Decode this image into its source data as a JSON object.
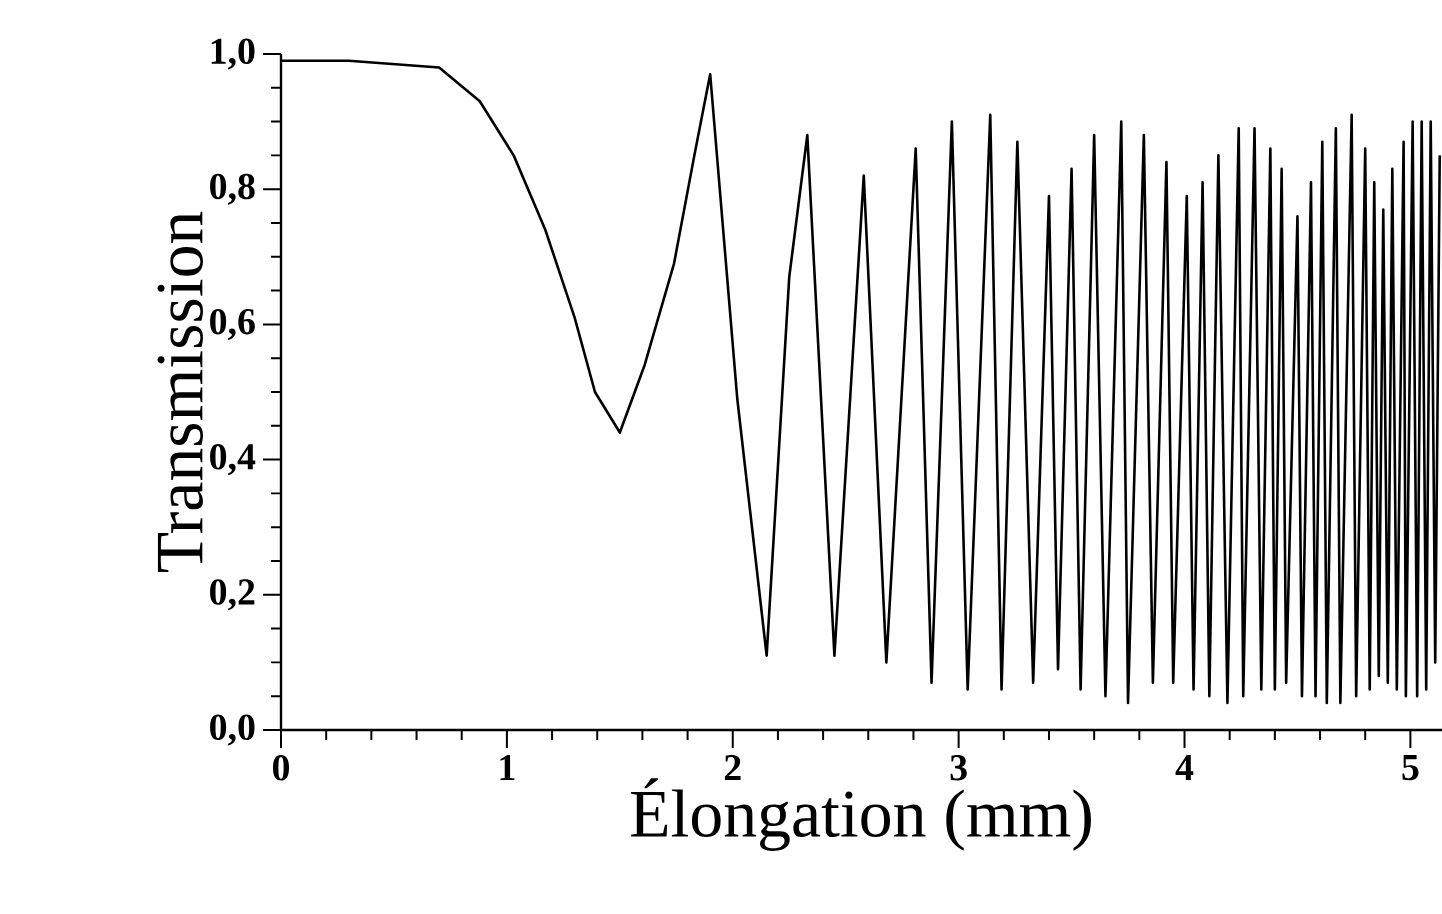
{
  "chart_data": {
    "type": "line",
    "xlabel": "Élongation (mm)",
    "ylabel": "Transmission",
    "x": [
      0,
      0.3,
      0.7,
      0.88,
      1.03,
      1.17,
      1.3,
      1.39,
      1.5,
      1.61,
      1.74,
      1.83,
      1.9,
      2.02,
      2.15,
      2.25,
      2.33,
      2.45,
      2.58,
      2.68,
      2.81,
      2.88,
      2.97,
      3.04,
      3.14,
      3.19,
      3.26,
      3.33,
      3.4,
      3.44,
      3.5,
      3.54,
      3.6,
      3.65,
      3.72,
      3.75,
      3.82,
      3.86,
      3.92,
      3.95,
      4.01,
      4.04,
      4.08,
      4.11,
      4.15,
      4.19,
      4.24,
      4.26,
      4.31,
      4.34,
      4.38,
      4.4,
      4.43,
      4.45,
      4.5,
      4.52,
      4.56,
      4.58,
      4.61,
      4.63,
      4.67,
      4.69,
      4.74,
      4.76,
      4.8,
      4.82,
      4.84,
      4.86,
      4.88,
      4.9,
      4.92,
      4.94,
      4.97,
      4.98,
      5.01,
      5.03,
      5.05,
      5.07,
      5.09,
      5.11,
      5.13
    ],
    "series": [
      {
        "color": "#000000",
        "values": [
          0.99,
          0.99,
          0.98,
          0.93,
          0.85,
          0.74,
          0.61,
          0.5,
          0.44,
          0.54,
          0.69,
          0.85,
          0.97,
          0.49,
          0.11,
          0.67,
          0.88,
          0.11,
          0.82,
          0.1,
          0.86,
          0.07,
          0.9,
          0.06,
          0.91,
          0.06,
          0.87,
          0.07,
          0.79,
          0.09,
          0.83,
          0.06,
          0.88,
          0.05,
          0.9,
          0.04,
          0.88,
          0.07,
          0.84,
          0.07,
          0.79,
          0.06,
          0.81,
          0.05,
          0.85,
          0.04,
          0.89,
          0.05,
          0.89,
          0.06,
          0.86,
          0.06,
          0.83,
          0.07,
          0.76,
          0.05,
          0.81,
          0.05,
          0.87,
          0.04,
          0.89,
          0.04,
          0.91,
          0.05,
          0.86,
          0.06,
          0.81,
          0.08,
          0.77,
          0.07,
          0.83,
          0.06,
          0.87,
          0.05,
          0.9,
          0.05,
          0.9,
          0.06,
          0.9,
          0.1,
          0.85
        ]
      }
    ],
    "xlim": [
      0,
      5.14
    ],
    "ylim": [
      0,
      1.0
    ],
    "xticks": [
      0,
      1,
      2,
      3,
      4,
      5
    ],
    "yticks": [
      {
        "value": 0.0,
        "label": "0,0"
      },
      {
        "value": 0.2,
        "label": "0,2"
      },
      {
        "value": 0.4,
        "label": "0,4"
      },
      {
        "value": 0.6,
        "label": "0,6"
      },
      {
        "value": 0.8,
        "label": "0,8"
      },
      {
        "value": 1.0,
        "label": "1,0"
      }
    ],
    "grid": false,
    "legend": false,
    "marker": "none",
    "line_style": "solid"
  }
}
